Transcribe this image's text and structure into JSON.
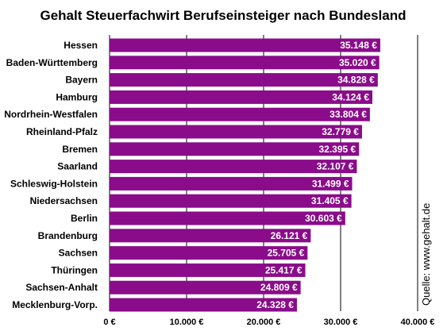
{
  "chart_data": {
    "type": "bar",
    "orientation": "horizontal",
    "title": "Gehalt Steuerfachwirt Berufseinsteiger nach Bundesland",
    "categories": [
      "Hessen",
      "Baden-Württemberg",
      "Bayern",
      "Hamburg",
      "Nordrhein-Westfalen",
      "Rheinland-Pfalz",
      "Bremen",
      "Saarland",
      "Schleswig-Holstein",
      "Niedersachsen",
      "Berlin",
      "Brandenburg",
      "Sachsen",
      "Thüringen",
      "Sachsen-Anhalt",
      "Mecklenburg-Vorp."
    ],
    "values": [
      35148,
      35020,
      34828,
      34124,
      33804,
      32779,
      32395,
      32107,
      31499,
      31405,
      30603,
      26121,
      25705,
      25417,
      24809,
      24328
    ],
    "value_labels": [
      "35.148 €",
      "35.020 €",
      "34.828 €",
      "34.124 €",
      "33.804 €",
      "32.779 €",
      "32.395 €",
      "32.107 €",
      "31.499 €",
      "31.405 €",
      "30.603 €",
      "26.121 €",
      "25.705 €",
      "25.417 €",
      "24.809 €",
      "24.328 €"
    ],
    "xlim": [
      0,
      40000
    ],
    "ticks": [
      0,
      10000,
      20000,
      30000,
      40000
    ],
    "tick_labels": [
      "0 €",
      "10.000 €",
      "20.000 €",
      "30.000 €",
      "40.000 €"
    ],
    "grid": "vertical",
    "bar_color": "#8a0c8a",
    "source": "Quelle: www.gehalt.de"
  }
}
